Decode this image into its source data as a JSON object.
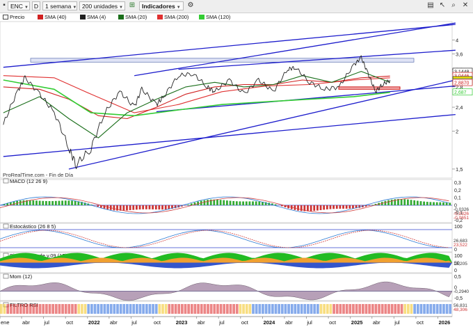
{
  "toolbar": {
    "symbol": "ENC",
    "period_letter": "D",
    "timeframe": "1 semana",
    "units": "200 unidades",
    "indicators_label": "Indicadores"
  },
  "legend": [
    {
      "label": "Precio",
      "color": "#222222"
    },
    {
      "label": "SMA (40)",
      "color": "#d02020"
    },
    {
      "label": "SMA (4)",
      "color": "#202020"
    },
    {
      "label": "SMA (20)",
      "color": "#1a6e1a"
    },
    {
      "label": "SMA (200)",
      "color": "#e03030"
    },
    {
      "label": "SMA (120)",
      "color": "#33cc33"
    }
  ],
  "watermark": "ProRealTime.com - Fin de Día",
  "colors": {
    "price": "#222222",
    "trend": "#1c1ccc",
    "sma40": "#d02020",
    "sma20": "#1a6e1a",
    "sma120": "#33cc33",
    "zone": "#b8c2e8"
  },
  "chart_data": [
    {
      "type": "line",
      "panel": "price",
      "yticks": [
        "4",
        "3,6",
        "3,2",
        "2,8",
        "2,4",
        "2",
        "1,5"
      ],
      "ylim": [
        1.4,
        4.6
      ],
      "price_tags": [
        {
          "label": "3,1448",
          "value": 3.1448,
          "color": "#222222"
        },
        {
          "label": "3,0446",
          "value": 3.0446,
          "color": "#d02020"
        },
        {
          "label": "2,952",
          "value": 2.952,
          "color": "#222222",
          "highlight": "#ffe600"
        },
        {
          "label": "2,9060",
          "value": 2.906,
          "color": "#1a6e1a"
        },
        {
          "label": "2,8870",
          "value": 2.887,
          "color": "#d02020"
        },
        {
          "label": "2,687",
          "value": 2.687,
          "color": "#33cc33"
        }
      ],
      "x_date_range": [
        "2021-01",
        "2026-03"
      ],
      "series": [
        {
          "name": "Precio",
          "x": [
            "2021-01",
            "2021-03",
            "2021-04",
            "2021-06",
            "2021-08",
            "2021-10",
            "2021-11",
            "2022-01",
            "2022-03",
            "2022-05",
            "2022-07",
            "2022-08",
            "2022-10",
            "2022-11",
            "2023-01",
            "2023-03",
            "2023-05",
            "2023-06",
            "2023-08",
            "2023-10",
            "2023-12",
            "2024-02",
            "2024-04",
            "2024-05",
            "2024-07",
            "2024-09",
            "2024-11",
            "2025-01",
            "2025-02",
            "2025-03",
            "2025-04",
            "2025-05",
            "2025-06"
          ],
          "y": [
            2.1,
            2.7,
            3.0,
            2.65,
            2.3,
            1.75,
            1.55,
            1.75,
            2.3,
            2.7,
            2.4,
            2.75,
            2.45,
            2.6,
            3.05,
            3.1,
            2.8,
            2.7,
            2.95,
            2.65,
            2.95,
            2.7,
            3.2,
            3.25,
            2.9,
            2.75,
            2.8,
            3.3,
            3.5,
            3.1,
            2.7,
            2.85,
            2.95
          ]
        },
        {
          "name": "SMA (40)",
          "x": [
            "2021-01",
            "2021-06",
            "2021-10",
            "2022-02",
            "2022-06",
            "2022-10",
            "2023-02",
            "2023-06",
            "2023-10",
            "2024-02",
            "2024-06",
            "2024-10",
            "2025-02",
            "2025-06"
          ],
          "y": [
            2.8,
            2.75,
            2.55,
            2.25,
            2.2,
            2.4,
            2.65,
            2.8,
            2.85,
            2.85,
            2.95,
            2.9,
            3.0,
            3.04
          ]
        },
        {
          "name": "SMA (20)",
          "x": [
            "2021-01",
            "2021-06",
            "2021-10",
            "2022-02",
            "2022-06",
            "2022-10",
            "2023-02",
            "2023-06",
            "2023-10",
            "2024-02",
            "2024-06",
            "2024-10",
            "2025-02",
            "2025-06"
          ],
          "y": [
            2.3,
            2.6,
            2.2,
            1.9,
            2.3,
            2.55,
            2.8,
            2.9,
            2.8,
            2.85,
            3.05,
            2.9,
            3.15,
            2.9
          ]
        },
        {
          "name": "SMA (200)",
          "x": [
            "2021-01",
            "2021-08",
            "2022-01",
            "2022-07",
            "2023-01",
            "2023-07",
            "2024-01",
            "2024-07",
            "2025-01",
            "2025-06"
          ],
          "y": [
            3.05,
            3.0,
            2.65,
            2.3,
            2.45,
            2.7,
            2.82,
            2.85,
            2.95,
            3.0
          ]
        },
        {
          "name": "SMA (120)",
          "x": [
            "2021-01",
            "2021-08",
            "2022-01",
            "2022-07",
            "2023-01",
            "2023-07",
            "2024-01",
            "2024-07",
            "2025-01",
            "2025-06"
          ],
          "y": [
            2.95,
            2.75,
            2.3,
            2.25,
            2.35,
            2.45,
            2.5,
            2.55,
            2.6,
            2.687
          ]
        }
      ]
    },
    {
      "type": "line",
      "panel": "macd",
      "title": "MACD (12 26 9)",
      "yticks": [
        "0,3",
        "0,2",
        "0,1",
        "0",
        "-0,1",
        "-0,2"
      ],
      "value_tags": [
        "-0,0326",
        "-0,0326",
        "-0,0651"
      ]
    },
    {
      "type": "line",
      "panel": "stochastic",
      "title": "Estocástico (26 8 5)",
      "yticks": [
        "100",
        "0"
      ],
      "value_tags": [
        "26,683",
        "23,522"
      ]
    },
    {
      "type": "area",
      "panel": "koncorde",
      "title": "Blai5 Koncorde v.09 (15)",
      "yticks": [
        "100",
        "50",
        "0"
      ],
      "value_tags": [
        "13,205"
      ]
    },
    {
      "type": "line",
      "panel": "momentum",
      "title": "Mom (12)",
      "yticks": [
        "0,5",
        "0",
        "-0,5"
      ],
      "value_tags": [
        "-0,2940"
      ]
    },
    {
      "type": "bar",
      "panel": "rsi_filter",
      "title": "FILTRO RSI",
      "value_tags": [
        "56,831",
        "48,306"
      ]
    }
  ],
  "x_axis": {
    "labels": [
      "ene",
      "abr",
      "jul",
      "oct",
      "2022",
      "abr",
      "jul",
      "oct",
      "2023",
      "abr",
      "jul",
      "oct",
      "2024",
      "abr",
      "jul",
      "oct",
      "2025",
      "abr",
      "jul",
      "oct",
      "2026"
    ],
    "bold": [
      false,
      false,
      false,
      false,
      true,
      false,
      false,
      false,
      true,
      false,
      false,
      false,
      true,
      false,
      false,
      false,
      true,
      false,
      false,
      false,
      true
    ]
  }
}
